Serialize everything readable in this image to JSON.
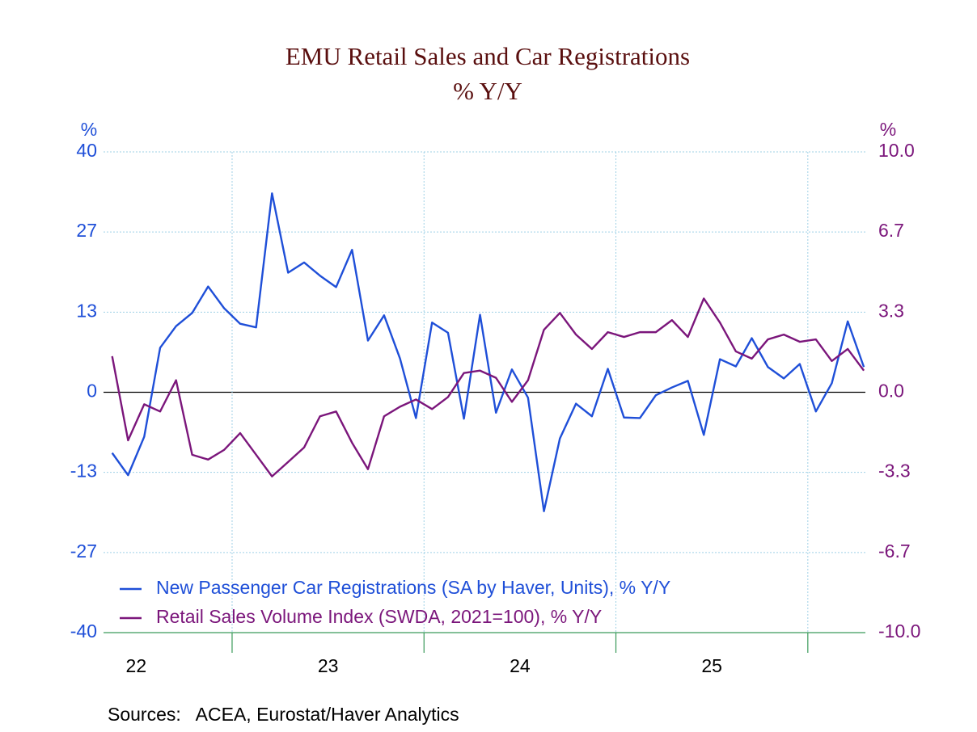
{
  "chart_data": {
    "type": "line",
    "title": "EMU Retail Sales and Car Registrations",
    "subtitle": "% Y/Y",
    "y_label": "%",
    "y2_label": "%",
    "source": "Sources:   ACEA, Eurostat/Haver Analytics",
    "legend": "lower left",
    "grid": true,
    "xlim": [
      22.33,
      26.3
    ],
    "xgrid": [
      23,
      24,
      25,
      26
    ],
    "xticks": [
      {
        "value": 22.5,
        "label": "22"
      },
      {
        "value": 23.5,
        "label": "23"
      },
      {
        "value": 24.5,
        "label": "24"
      },
      {
        "value": 25.5,
        "label": "25"
      }
    ],
    "ylim": [
      -40,
      40
    ],
    "yticks": [
      40,
      {
        "value": 26.667,
        "label": "27"
      },
      {
        "value": 13.333,
        "label": "13"
      },
      0,
      {
        "value": -13.333,
        "label": "-13"
      },
      {
        "value": -26.667,
        "label": "-27"
      },
      -40
    ],
    "y2lim": [
      -10,
      10
    ],
    "y2ticks": [
      {
        "value": 10,
        "label": "10.0"
      },
      {
        "value": 6.667,
        "label": "6.7"
      },
      {
        "value": 3.333,
        "label": "3.3"
      },
      {
        "value": 0,
        "label": "0.0"
      },
      {
        "value": -3.333,
        "label": "-3.3"
      },
      {
        "value": -6.667,
        "label": "-6.7"
      },
      {
        "value": -10,
        "label": "-10.0"
      }
    ],
    "x": [
      22.375,
      22.458,
      22.542,
      22.625,
      22.708,
      22.792,
      22.875,
      22.958,
      23.042,
      23.125,
      23.208,
      23.292,
      23.375,
      23.458,
      23.542,
      23.625,
      23.708,
      23.792,
      23.875,
      23.958,
      24.042,
      24.125,
      24.208,
      24.292,
      24.375,
      24.458,
      24.542,
      24.625,
      24.708,
      24.792,
      24.875,
      24.958,
      25.042,
      25.125,
      25.208,
      25.292,
      25.375,
      25.458,
      25.542,
      25.625,
      25.708,
      25.792,
      25.875,
      25.958,
      26.042,
      26.125,
      26.208,
      26.292
    ],
    "series": [
      {
        "name": "New Passenger Car Registrations (SA by Haver, Units), % Y/Y",
        "color": "#1f4fd8",
        "values": [
          -10.1,
          -13.8,
          -7.4,
          7.4,
          11.0,
          13.2,
          17.6,
          14.0,
          11.4,
          10.8,
          33.1,
          19.9,
          21.6,
          19.4,
          17.5,
          23.7,
          8.6,
          12.8,
          5.6,
          -4.3,
          11.6,
          9.9,
          -4.4,
          12.9,
          -3.4,
          3.8,
          -0.9,
          -19.8,
          -7.7,
          -1.9,
          -4.0,
          3.9,
          -4.2,
          -4.3,
          -0.5,
          0.8,
          1.9,
          -7.1,
          5.5,
          4.3,
          9.0,
          4.2,
          2.3,
          4.7,
          -3.2,
          1.5,
          11.8,
          4.2
        ]
      },
      {
        "name": "Retail Sales Volume Index (SWDA, 2021=100), % Y/Y",
        "color": "#7b167b",
        "axis": "y2",
        "values": [
          1.5,
          -2.0,
          -0.5,
          -0.8,
          0.5,
          -2.6,
          -2.8,
          -2.4,
          -1.7,
          -2.6,
          -3.5,
          -2.9,
          -2.3,
          -1.0,
          -0.8,
          -2.1,
          -3.2,
          -1.0,
          -0.6,
          -0.3,
          -0.7,
          -0.2,
          0.8,
          0.9,
          0.6,
          -0.4,
          0.5,
          2.6,
          3.3,
          2.4,
          1.8,
          2.5,
          2.3,
          2.5,
          2.5,
          3.0,
          2.3,
          3.9,
          2.9,
          1.7,
          1.4,
          2.2,
          2.4,
          2.1,
          2.2,
          1.3,
          1.8,
          0.9
        ]
      }
    ]
  }
}
